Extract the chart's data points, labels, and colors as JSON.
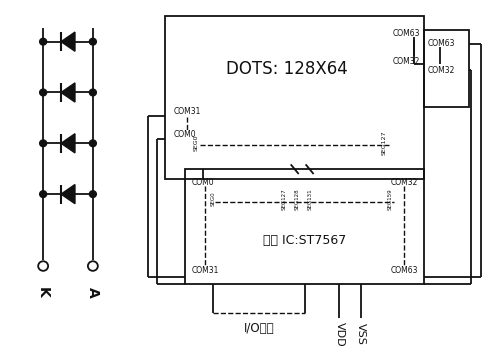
{
  "bg_color": "#ffffff",
  "line_color": "#111111",
  "text_color": "#111111",
  "dots_text": "DOTS: 128X64",
  "ic_text": "驱动 IC:ST7567",
  "io_text": "I/O接口",
  "vdd_text": "VDD",
  "vss_text": "VSS",
  "k_text": "K",
  "a_text": "A",
  "figsize": [
    4.87,
    3.48
  ],
  "dpi": 100
}
